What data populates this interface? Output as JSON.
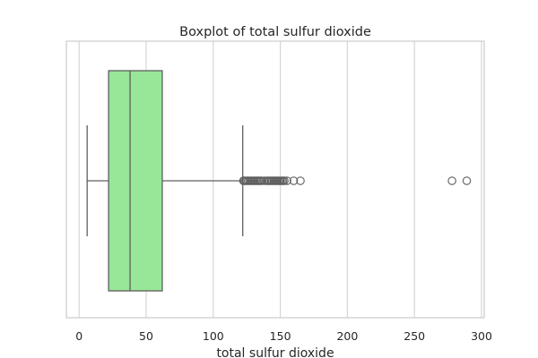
{
  "chart_data": {
    "type": "boxplot",
    "title": "Boxplot of total sulfur dioxide",
    "xlabel": "total sulfur dioxide",
    "ylabel": "",
    "xlim": [
      -9.5,
      302
    ],
    "xticks": [
      0,
      50,
      100,
      150,
      200,
      250,
      300
    ],
    "grid": "vertical",
    "orientation": "horizontal",
    "box": {
      "whisker_low": 6,
      "q1": 22,
      "median": 38,
      "q3": 62,
      "whisker_high": 122,
      "fill_color": "#98e698",
      "line_color": "#5f5f5f"
    },
    "outliers": [
      122.5,
      123,
      124,
      125,
      126,
      127,
      128,
      129,
      130,
      131,
      132,
      133,
      134,
      135,
      136,
      138,
      140,
      141,
      142,
      143,
      144,
      145,
      146,
      147,
      148,
      149,
      150,
      151,
      152,
      153,
      155,
      160,
      165,
      278,
      289
    ]
  }
}
